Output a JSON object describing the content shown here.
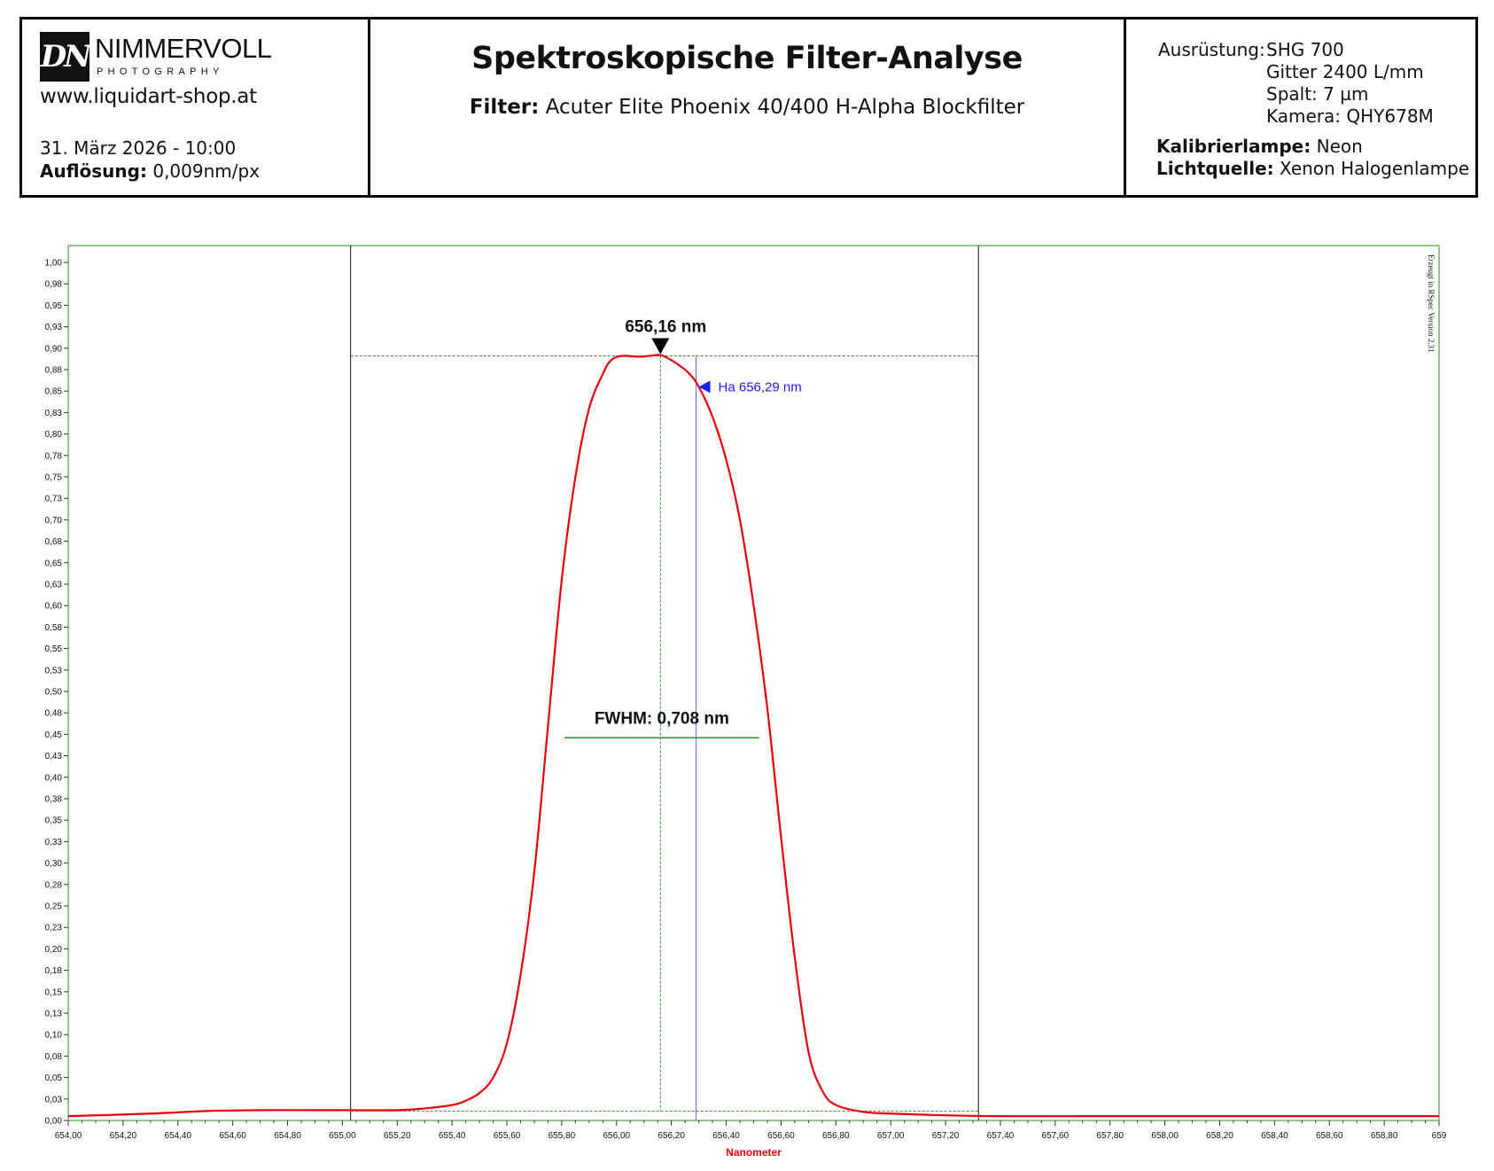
{
  "header": {
    "logo_mark": "DN",
    "logo_name": "NIMMERVOLL",
    "logo_sub": "PHOTOGRAPHY",
    "website": "www.liquidart-shop.at",
    "datetime": "31. März 2026 - 10:00",
    "resolution_label": "Auflösung:",
    "resolution_value": " 0,009nm/px",
    "title": "Spektroskopische Filter-Analyse",
    "filter_label": "Filter:",
    "filter_value": " Acuter Elite Phoenix 40/400 H-Alpha Blockfilter",
    "equipment_label": "Ausrüstung:",
    "equipment_lines": [
      "SHG 700",
      "Gitter 2400 L/mm",
      "Spalt: 7 µm",
      "Kamera: QHY678M"
    ],
    "lamp_label": "Kalibrierlampe:",
    "lamp_value": " Neon",
    "light_label": "Lichtquelle:",
    "light_value": " Xenon Halogenlampe"
  },
  "chart_data": {
    "type": "line",
    "title": "",
    "xlabel": "Nanometer",
    "ylabel": "",
    "xlim": [
      654.0,
      659.0
    ],
    "ylim": [
      0.0,
      1.0
    ],
    "y_ticks": [
      "0,00",
      "0,03",
      "0,05",
      "0,08",
      "0,10",
      "0,13",
      "0,15",
      "0,18",
      "0,20",
      "0,23",
      "0,25",
      "0,28",
      "0,30",
      "0,33",
      "0,35",
      "0,38",
      "0,40",
      "0,43",
      "0,45",
      "0,48",
      "0,50",
      "0,53",
      "0,55",
      "0,58",
      "0,60",
      "0,63",
      "0,65",
      "0,68",
      "0,70",
      "0,73",
      "0,75",
      "0,78",
      "0,80",
      "0,83",
      "0,85",
      "0,88",
      "0,90",
      "0,93",
      "0,95",
      "0,98",
      "1,00"
    ],
    "x_ticks": [
      "654,00",
      "654,20",
      "654,40",
      "654,60",
      "654,80",
      "655,00",
      "655,20",
      "655,40",
      "655,60",
      "655,80",
      "656,00",
      "656,20",
      "656,40",
      "656,60",
      "656,80",
      "657,00",
      "657,20",
      "657,40",
      "657,60",
      "657,80",
      "658,00",
      "658,20",
      "658,40",
      "658,60",
      "658,80",
      "659"
    ],
    "grid": false,
    "series": [
      {
        "color": "#e8000b",
        "x": [
          654.0,
          654.3,
          654.5,
          654.7,
          654.9,
          655.0,
          655.2,
          655.3,
          655.4,
          655.45,
          655.5,
          655.55,
          655.6,
          655.65,
          655.7,
          655.75,
          655.8,
          655.85,
          655.9,
          655.95,
          655.98,
          656.02,
          656.08,
          656.12,
          656.16,
          656.2,
          656.26,
          656.3,
          656.35,
          656.4,
          656.45,
          656.5,
          656.55,
          656.6,
          656.65,
          656.7,
          656.75,
          656.8,
          656.9,
          657.0,
          657.2,
          657.4,
          657.7,
          658.0,
          658.5,
          659.0
        ],
        "y": [
          0.005,
          0.008,
          0.011,
          0.012,
          0.012,
          0.012,
          0.012,
          0.014,
          0.018,
          0.023,
          0.032,
          0.05,
          0.09,
          0.17,
          0.29,
          0.46,
          0.63,
          0.75,
          0.83,
          0.87,
          0.886,
          0.891,
          0.89,
          0.891,
          0.892,
          0.886,
          0.872,
          0.855,
          0.82,
          0.77,
          0.7,
          0.6,
          0.48,
          0.33,
          0.19,
          0.08,
          0.035,
          0.018,
          0.01,
          0.008,
          0.006,
          0.005,
          0.005,
          0.005,
          0.005,
          0.005
        ]
      }
    ],
    "annotations": {
      "peak_label": "656,16 nm",
      "peak_x": 656.16,
      "peak_y": 0.891,
      "ha_label": "Ha 656,29 nm",
      "ha_x": 656.29,
      "ha_y": 0.855,
      "fwhm_label": "FWHM: 0,708 nm",
      "fwhm_y": 0.446,
      "fwhm_x1": 655.81,
      "fwhm_x2": 656.52,
      "bound_left": 655.03,
      "bound_right": 657.32,
      "baseline_y": 0.011,
      "side_note": "Erzeugt in RSpec Version 2.31"
    },
    "colors": {
      "axis": "#2e8b2e",
      "curve": "#e8000b",
      "ha": "#1a1aff",
      "frame": "#2b8a2b"
    }
  }
}
